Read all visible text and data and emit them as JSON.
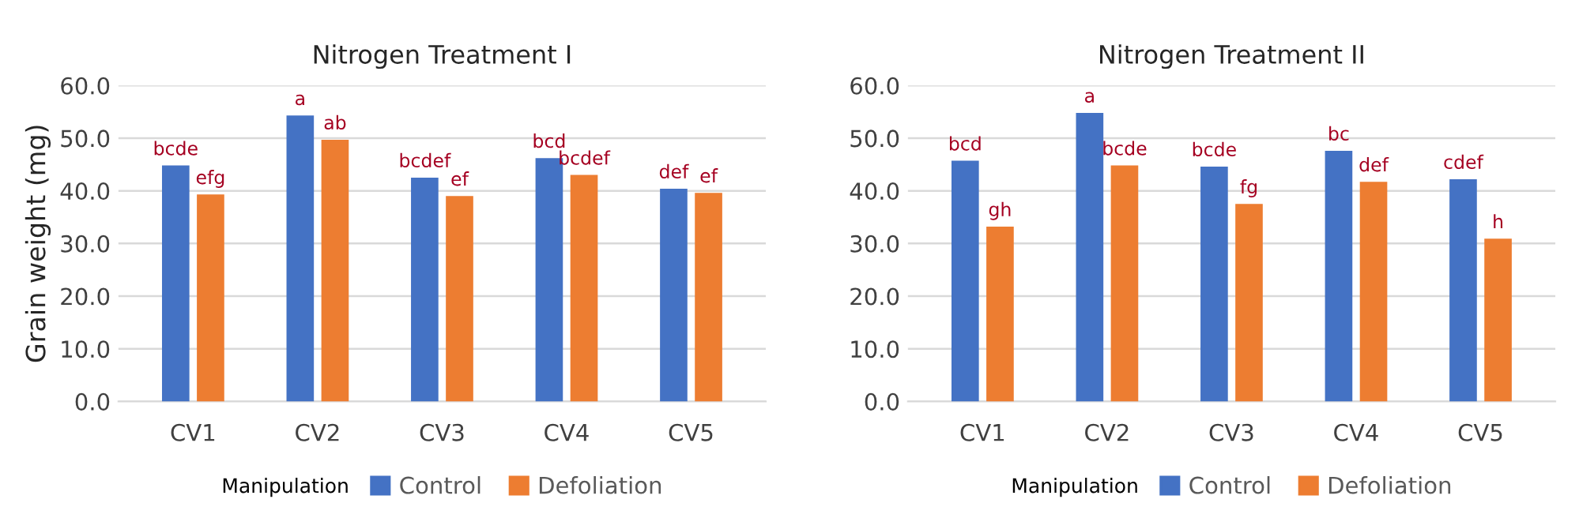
{
  "chart_data": [
    {
      "type": "bar",
      "title": "Nitrogen Treatment I",
      "ylabel": "Grain weight (mg)",
      "legend_title": "Manipulation",
      "categories": [
        "CV1",
        "CV2",
        "CV3",
        "CV4",
        "CV5"
      ],
      "series": [
        {
          "name": "Control",
          "color": "#4472c4",
          "values": [
            44.8,
            54.3,
            42.5,
            46.2,
            40.4
          ],
          "value_labels": [
            "bcde",
            "a",
            "bcdef",
            "bcd",
            "def"
          ]
        },
        {
          "name": "Defoliation",
          "color": "#ed7d31",
          "values": [
            39.3,
            49.7,
            39.0,
            43.0,
            39.6
          ],
          "value_labels": [
            "efg",
            "ab",
            "ef",
            "bcdef",
            "ef"
          ]
        }
      ],
      "ylim": [
        0,
        60
      ],
      "yticks": [
        {
          "value": 0,
          "label": "0.0"
        },
        {
          "value": 10,
          "label": "10.0"
        },
        {
          "value": 20,
          "label": "20.0"
        },
        {
          "value": 30,
          "label": "30.0"
        },
        {
          "value": 40,
          "label": "40.0"
        },
        {
          "value": 50,
          "label": "50.0"
        },
        {
          "value": 60,
          "label": "60.0"
        }
      ],
      "grid": "y",
      "legend": "bottom"
    },
    {
      "type": "bar",
      "title": "Nitrogen Treatment II",
      "legend_title": "Manipulation",
      "categories": [
        "CV1",
        "CV2",
        "CV3",
        "CV4",
        "CV5"
      ],
      "series": [
        {
          "name": "Control",
          "color": "#4472c4",
          "values": [
            45.7,
            54.8,
            44.6,
            47.6,
            42.2
          ],
          "value_labels": [
            "bcd",
            "a",
            "bcde",
            "bc",
            "cdef"
          ]
        },
        {
          "name": "Defoliation",
          "color": "#ed7d31",
          "values": [
            33.2,
            44.8,
            37.5,
            41.7,
            30.9
          ],
          "value_labels": [
            "gh",
            "bcde",
            "fg",
            "def",
            "h"
          ]
        }
      ],
      "ylim": [
        0,
        60
      ],
      "yticks": [
        {
          "value": 0,
          "label": "0.0"
        },
        {
          "value": 10,
          "label": "10.0"
        },
        {
          "value": 20,
          "label": "20.0"
        },
        {
          "value": 30,
          "label": "30.0"
        },
        {
          "value": 40,
          "label": "40.0"
        },
        {
          "value": 50,
          "label": "50.0"
        },
        {
          "value": 60,
          "label": "60.0"
        }
      ],
      "grid": "y",
      "legend": "bottom"
    }
  ]
}
